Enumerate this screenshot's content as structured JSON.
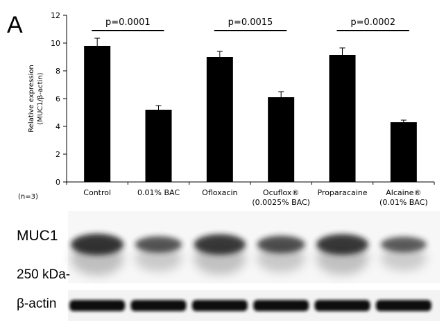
{
  "panel_label": "A",
  "n_label": "(n=3)",
  "chart_data": {
    "type": "bar",
    "categories": [
      [
        "Control"
      ],
      [
        "0.01% BAC"
      ],
      [
        "Ofloxacin"
      ],
      [
        "Ocuflox®",
        "(0.0025% BAC)"
      ],
      [
        "Proparacaine"
      ],
      [
        "Alcaine®",
        "(0.01% BAC)"
      ]
    ],
    "values": [
      9.8,
      5.2,
      9.0,
      6.1,
      9.15,
      4.3
    ],
    "errors": [
      0.55,
      0.3,
      0.4,
      0.4,
      0.5,
      0.15
    ],
    "ylabel": [
      "Relative expression",
      "(MUC1/β-actin)"
    ],
    "ylim": [
      0,
      12
    ],
    "yticks": [
      0,
      2,
      4,
      6,
      8,
      10,
      12
    ],
    "bar_color": "#000000",
    "comparisons": [
      {
        "from": 0,
        "to": 1,
        "label": "p=0.0001"
      },
      {
        "from": 2,
        "to": 3,
        "label": "p=0.0015"
      },
      {
        "from": 4,
        "to": 5,
        "label": "p=0.0002"
      }
    ]
  },
  "blot": {
    "muc1_label": "MUC1",
    "kda_label": "250 kDa-",
    "actin_label": "β-actin"
  }
}
